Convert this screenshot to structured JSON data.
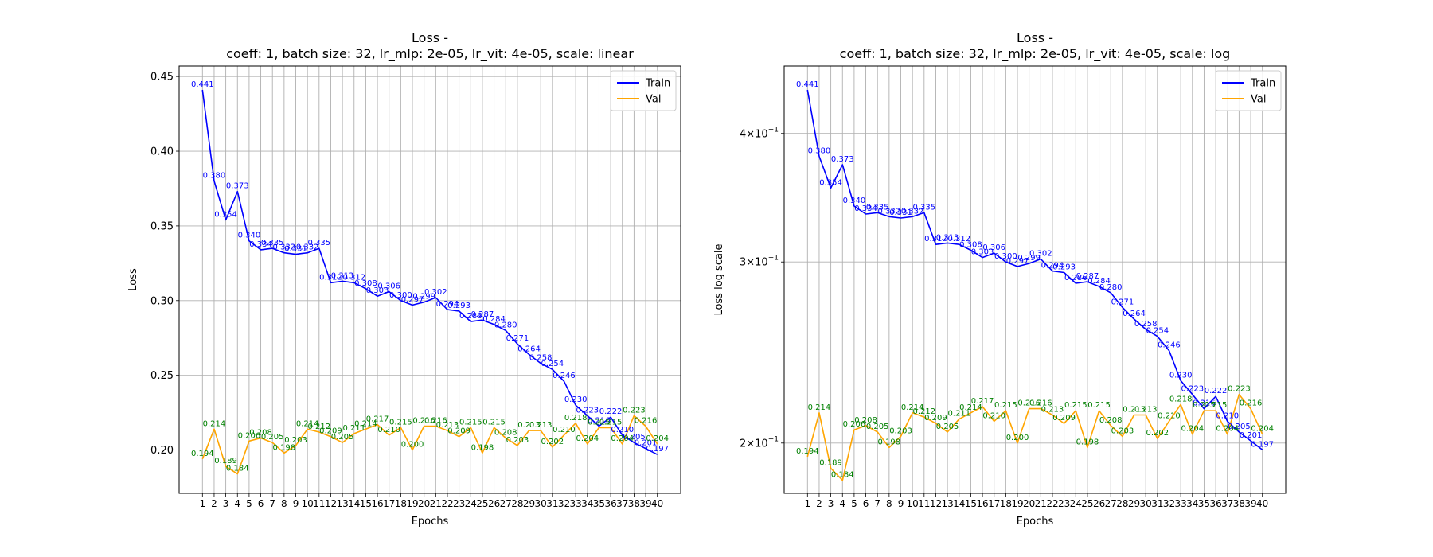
{
  "figure": {
    "colors": {
      "train": "#0000ff",
      "val": "#ffa500",
      "val_label": "#008000",
      "grid": "#b0b0b0"
    }
  },
  "chart_data": [
    {
      "type": "line",
      "title": "Loss -",
      "subtitle": "coeff: 1, batch size: 32, lr_mlp: 2e-05, lr_vit: 4e-05, scale: linear",
      "xlabel": "Epochs",
      "ylabel": "Loss",
      "yscale": "linear",
      "ylim": [
        0.171,
        0.457
      ],
      "yticks": [
        0.2,
        0.25,
        0.3,
        0.35,
        0.4,
        0.45
      ],
      "yticklabels": [
        "0.20",
        "0.25",
        "0.30",
        "0.35",
        "0.40",
        "0.45"
      ],
      "grid": true,
      "legend": "top-right",
      "x": [
        1,
        2,
        3,
        4,
        5,
        6,
        7,
        8,
        9,
        10,
        11,
        12,
        13,
        14,
        15,
        16,
        17,
        18,
        19,
        20,
        21,
        22,
        23,
        24,
        25,
        26,
        27,
        28,
        29,
        30,
        31,
        32,
        33,
        34,
        35,
        36,
        37,
        38,
        39,
        40
      ],
      "series": [
        {
          "name": "Train",
          "color": "#0000ff",
          "label_color": "#0000ff",
          "values": [
            0.441,
            0.38,
            0.354,
            0.373,
            0.34,
            0.334,
            0.335,
            0.332,
            0.331,
            0.332,
            0.335,
            0.312,
            0.313,
            0.312,
            0.308,
            0.303,
            0.306,
            0.3,
            0.297,
            0.299,
            0.302,
            0.294,
            0.293,
            0.286,
            0.287,
            0.284,
            0.28,
            0.271,
            0.264,
            0.258,
            0.254,
            0.246,
            0.23,
            0.223,
            0.216,
            0.222,
            0.21,
            0.205,
            0.201,
            0.197
          ]
        },
        {
          "name": "Val",
          "color": "#ffa500",
          "label_color": "#008000",
          "values": [
            0.194,
            0.214,
            0.189,
            0.184,
            0.206,
            0.208,
            0.205,
            0.198,
            0.203,
            0.214,
            0.212,
            0.209,
            0.205,
            0.211,
            0.214,
            0.217,
            0.21,
            0.215,
            0.2,
            0.216,
            0.216,
            0.213,
            0.209,
            0.215,
            0.198,
            0.215,
            0.208,
            0.203,
            0.213,
            0.213,
            0.202,
            0.21,
            0.218,
            0.204,
            0.215,
            0.215,
            0.204,
            0.223,
            0.216,
            0.204
          ]
        }
      ]
    },
    {
      "type": "line",
      "title": "Loss -",
      "subtitle": "coeff: 1, batch size: 32, lr_mlp: 2e-05, lr_vit: 4e-05, scale: log",
      "xlabel": "Epochs",
      "ylabel": "Loss log scale",
      "yscale": "log",
      "ylim": [
        0.1787,
        0.4652
      ],
      "yticks": [
        0.2,
        0.3,
        0.4
      ],
      "yticklabels": [
        {
          "base": "2×10",
          "exp": "−1"
        },
        {
          "base": "3×10",
          "exp": "−1"
        },
        {
          "base": "4×10",
          "exp": "−1"
        }
      ],
      "grid": true,
      "legend": "top-right",
      "x": [
        1,
        2,
        3,
        4,
        5,
        6,
        7,
        8,
        9,
        10,
        11,
        12,
        13,
        14,
        15,
        16,
        17,
        18,
        19,
        20,
        21,
        22,
        23,
        24,
        25,
        26,
        27,
        28,
        29,
        30,
        31,
        32,
        33,
        34,
        35,
        36,
        37,
        38,
        39,
        40
      ],
      "series": [
        {
          "name": "Train",
          "color": "#0000ff",
          "label_color": "#0000ff",
          "values": [
            0.441,
            0.38,
            0.354,
            0.373,
            0.34,
            0.334,
            0.335,
            0.332,
            0.331,
            0.332,
            0.335,
            0.312,
            0.313,
            0.312,
            0.308,
            0.303,
            0.306,
            0.3,
            0.297,
            0.299,
            0.302,
            0.294,
            0.293,
            0.286,
            0.287,
            0.284,
            0.28,
            0.271,
            0.264,
            0.258,
            0.254,
            0.246,
            0.23,
            0.223,
            0.216,
            0.222,
            0.21,
            0.205,
            0.201,
            0.197
          ]
        },
        {
          "name": "Val",
          "color": "#ffa500",
          "label_color": "#008000",
          "values": [
            0.194,
            0.214,
            0.189,
            0.184,
            0.206,
            0.208,
            0.205,
            0.198,
            0.203,
            0.214,
            0.212,
            0.209,
            0.205,
            0.211,
            0.214,
            0.217,
            0.21,
            0.215,
            0.2,
            0.216,
            0.216,
            0.213,
            0.209,
            0.215,
            0.198,
            0.215,
            0.208,
            0.203,
            0.213,
            0.213,
            0.202,
            0.21,
            0.218,
            0.204,
            0.215,
            0.215,
            0.204,
            0.223,
            0.216,
            0.204
          ]
        }
      ]
    }
  ]
}
